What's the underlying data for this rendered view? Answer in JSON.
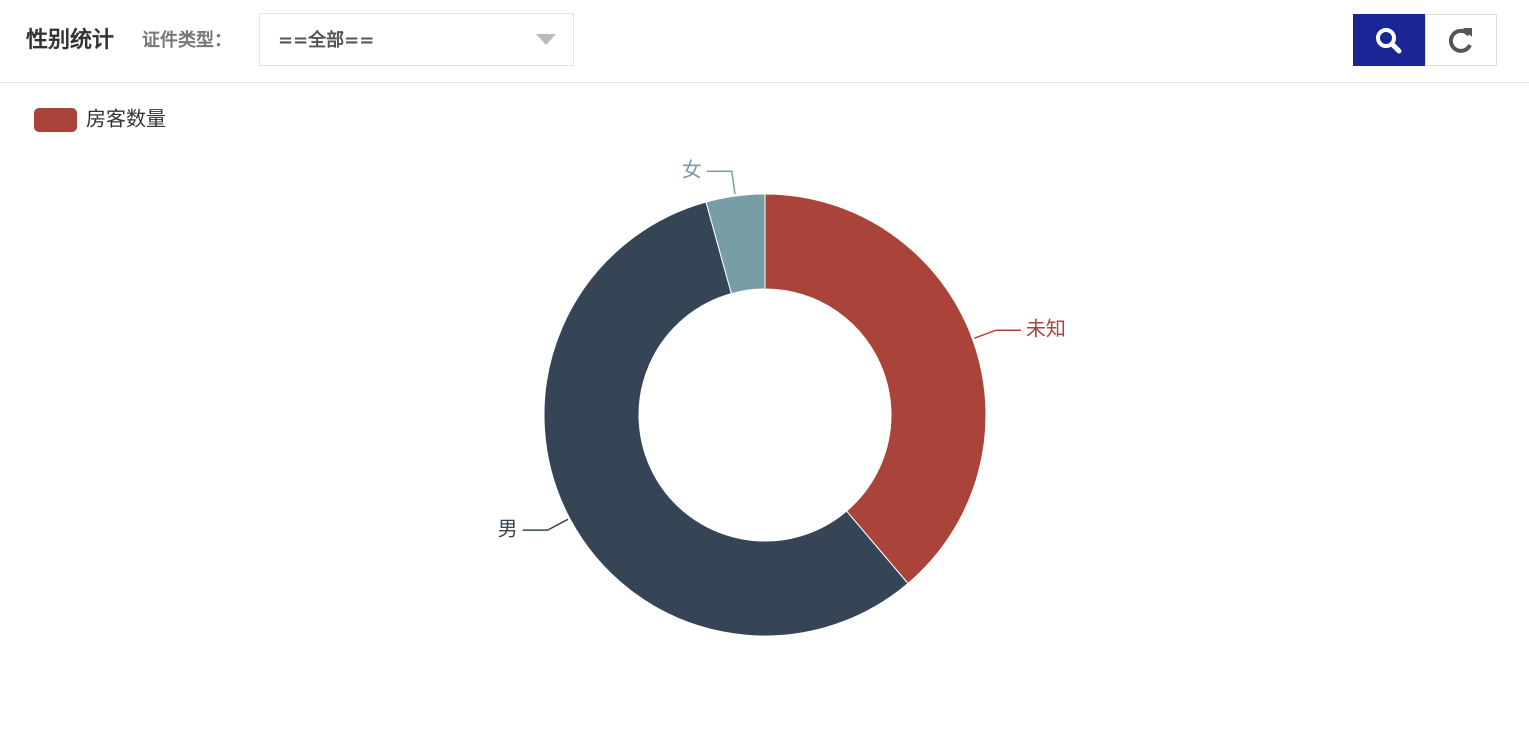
{
  "header": {
    "title": "性别统计",
    "filter_label": "证件类型：",
    "filter_value": "==全部=="
  },
  "chart_data": {
    "type": "pie",
    "series_name": "房客数量",
    "legend": "top-left",
    "categories": [
      "未知",
      "男",
      "女"
    ],
    "values": [
      38.8,
      56.9,
      4.3
    ],
    "colors": [
      "#aa4339",
      "#364556",
      "#789ea5"
    ]
  }
}
